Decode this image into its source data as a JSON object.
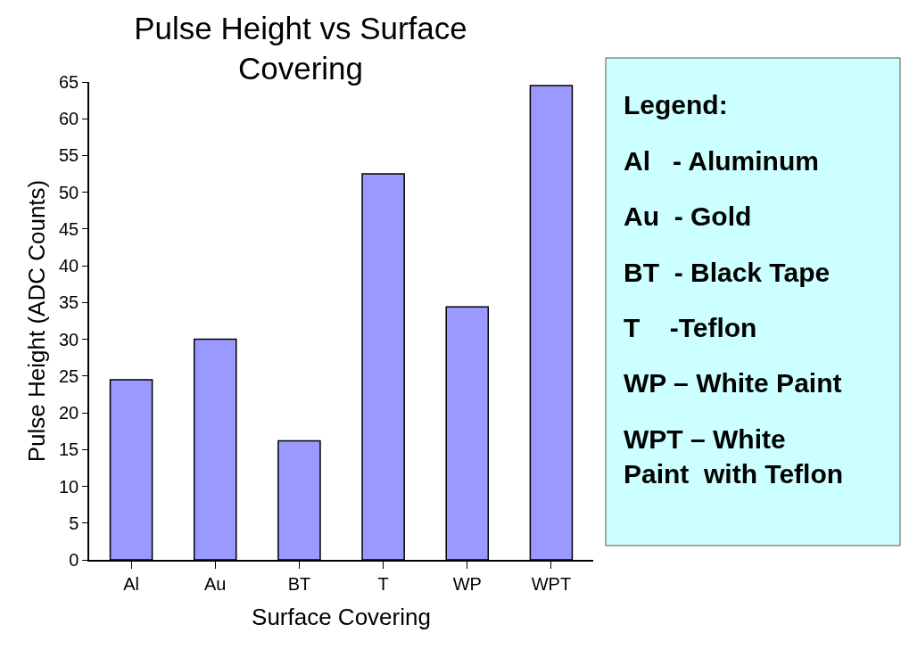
{
  "chart_data": {
    "type": "bar",
    "title": "Pulse Height vs Surface\nCovering",
    "xlabel": "Surface Covering",
    "ylabel": "Pulse Height (ADC Counts)",
    "categories": [
      "Al",
      "Au",
      "BT",
      "T",
      "WP",
      "WPT"
    ],
    "values": [
      24.5,
      30,
      16.2,
      52.5,
      34.4,
      64.5
    ],
    "color": "#9999ff",
    "ylim": [
      0,
      65
    ],
    "yticks": [
      0,
      5,
      10,
      15,
      20,
      25,
      30,
      35,
      40,
      45,
      50,
      55,
      60,
      65
    ],
    "annotations": [
      "Legend:",
      "Al   - Aluminum",
      "Au  - Gold",
      "BT  - Black Tape",
      "T    -Teflon",
      "WP – White Paint",
      "WPT – White\nPaint  with Teflon"
    ]
  }
}
